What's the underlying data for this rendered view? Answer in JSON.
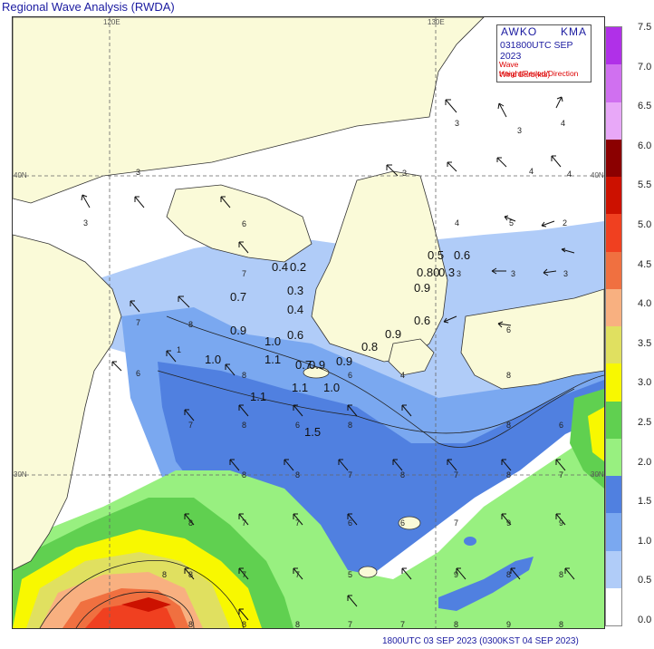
{
  "title": "Regional Wave Analysis (RWDA)",
  "footer": "1800UTC 03 SEP 2023 (0300KST 04 SEP 2023)",
  "infobox": {
    "agency_left": "AWKO",
    "agency_right": "KMA",
    "valid_time": "031800UTC SEP 2023",
    "legend_line1": "Wave Height/Period/Direction",
    "legend_line2": "Wind Barb(kts)"
  },
  "grid_labels": {
    "lon_120": "120E",
    "lon_130": "130E",
    "lat_40_left": "40N",
    "lat_40_right": "40N",
    "lat_30_left": "30N",
    "lat_30_right": "30N"
  },
  "colorbar": {
    "labels": [
      "7.5",
      "7.0",
      "6.5",
      "6.0",
      "5.5",
      "5.0",
      "4.5",
      "4.0",
      "3.5",
      "3.0",
      "2.5",
      "2.0",
      "1.5",
      "1.0",
      "0.5",
      "0.0"
    ],
    "colors": [
      "#b030e8",
      "#d070f0",
      "#e8a8f8",
      "#8b0000",
      "#cc1100",
      "#f04020",
      "#f07040",
      "#f8b080",
      "#e0e060",
      "#f8f800",
      "#60d050",
      "#98f080",
      "#5080e0",
      "#7aa8f0",
      "#b0ccf8",
      "#ffffff"
    ]
  },
  "isolines": [
    "0.5",
    "0.6",
    "0.4",
    "0.2",
    "0.80",
    "0.3",
    "0.9",
    "0.3",
    "0.7",
    "0.4",
    "0.9",
    "0.6",
    "0.9",
    "1.0",
    "0.6",
    "0.8",
    "0.9",
    "1.0",
    "1.1",
    "0.7",
    "0.9",
    "1.1",
    "1.0",
    "1.1",
    "1.5"
  ],
  "periods": [
    "3",
    "3",
    "4",
    "4",
    "3",
    "4",
    "3",
    "6",
    "3",
    "4",
    "5",
    "2",
    "7",
    "3",
    "3",
    "3",
    "7",
    "6",
    "8",
    "6",
    "6",
    "8",
    "4",
    "8",
    "7",
    "1",
    "8",
    "6",
    "8",
    "8",
    "6",
    "8",
    "8",
    "7",
    "8",
    "7",
    "8",
    "7",
    "8",
    "7",
    "7",
    "6",
    "6",
    "7",
    "8",
    "7",
    "9",
    "9",
    "8",
    "7",
    "5",
    "9",
    "8",
    "8",
    "8",
    "8",
    "8",
    "7",
    "7",
    "8",
    "9",
    "8"
  ]
}
